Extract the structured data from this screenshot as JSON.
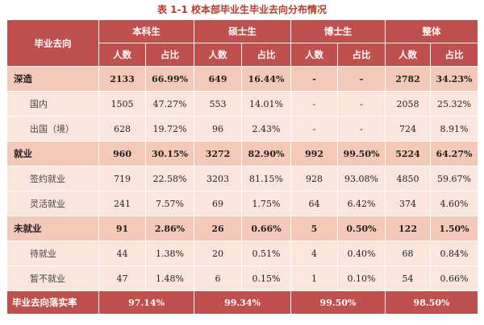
{
  "title": "表 1-1 校本部毕业生毕业去向分布情况",
  "header": {
    "row_label": "毕业去向",
    "groups": [
      "本科生",
      "硕士生",
      "博士生",
      "整体"
    ],
    "count_label": "人数",
    "ratio_label": "占比"
  },
  "rows": [
    {
      "label": "深造",
      "kind": "cat",
      "values": [
        "2133",
        "66.99%",
        "649",
        "16.44%",
        "-",
        "-",
        "2782",
        "34.23%"
      ]
    },
    {
      "label": "国内",
      "kind": "sub",
      "values": [
        "1505",
        "47.27%",
        "553",
        "14.01%",
        "-",
        "-",
        "2058",
        "25.32%"
      ]
    },
    {
      "label": "出国（境）",
      "kind": "sub",
      "values": [
        "628",
        "19.72%",
        "96",
        "2.43%",
        "-",
        "-",
        "724",
        "8.91%"
      ]
    },
    {
      "label": "就业",
      "kind": "cat",
      "values": [
        "960",
        "30.15%",
        "3272",
        "82.90%",
        "992",
        "99.50%",
        "5224",
        "64.27%"
      ]
    },
    {
      "label": "签约就业",
      "kind": "sub",
      "values": [
        "719",
        "22.58%",
        "3203",
        "81.15%",
        "928",
        "93.08%",
        "4850",
        "59.67%"
      ]
    },
    {
      "label": "灵活就业",
      "kind": "sub",
      "values": [
        "241",
        "7.57%",
        "69",
        "1.75%",
        "64",
        "6.42%",
        "374",
        "4.60%"
      ]
    },
    {
      "label": "未就业",
      "kind": "cat",
      "values": [
        "91",
        "2.86%",
        "26",
        "0.66%",
        "5",
        "0.50%",
        "122",
        "1.50%"
      ]
    },
    {
      "label": "待就业",
      "kind": "sub",
      "values": [
        "44",
        "1.38%",
        "20",
        "0.51%",
        "4",
        "0.40%",
        "68",
        "0.84%"
      ]
    },
    {
      "label": "暂不就业",
      "kind": "sub",
      "values": [
        "47",
        "1.48%",
        "6",
        "0.15%",
        "1",
        "0.10%",
        "54",
        "0.66%"
      ]
    }
  ],
  "footer": {
    "label": "毕业去向落实率",
    "values": [
      "97.14%",
      "99.34%",
      "99.50%",
      "98.50%"
    ]
  }
}
